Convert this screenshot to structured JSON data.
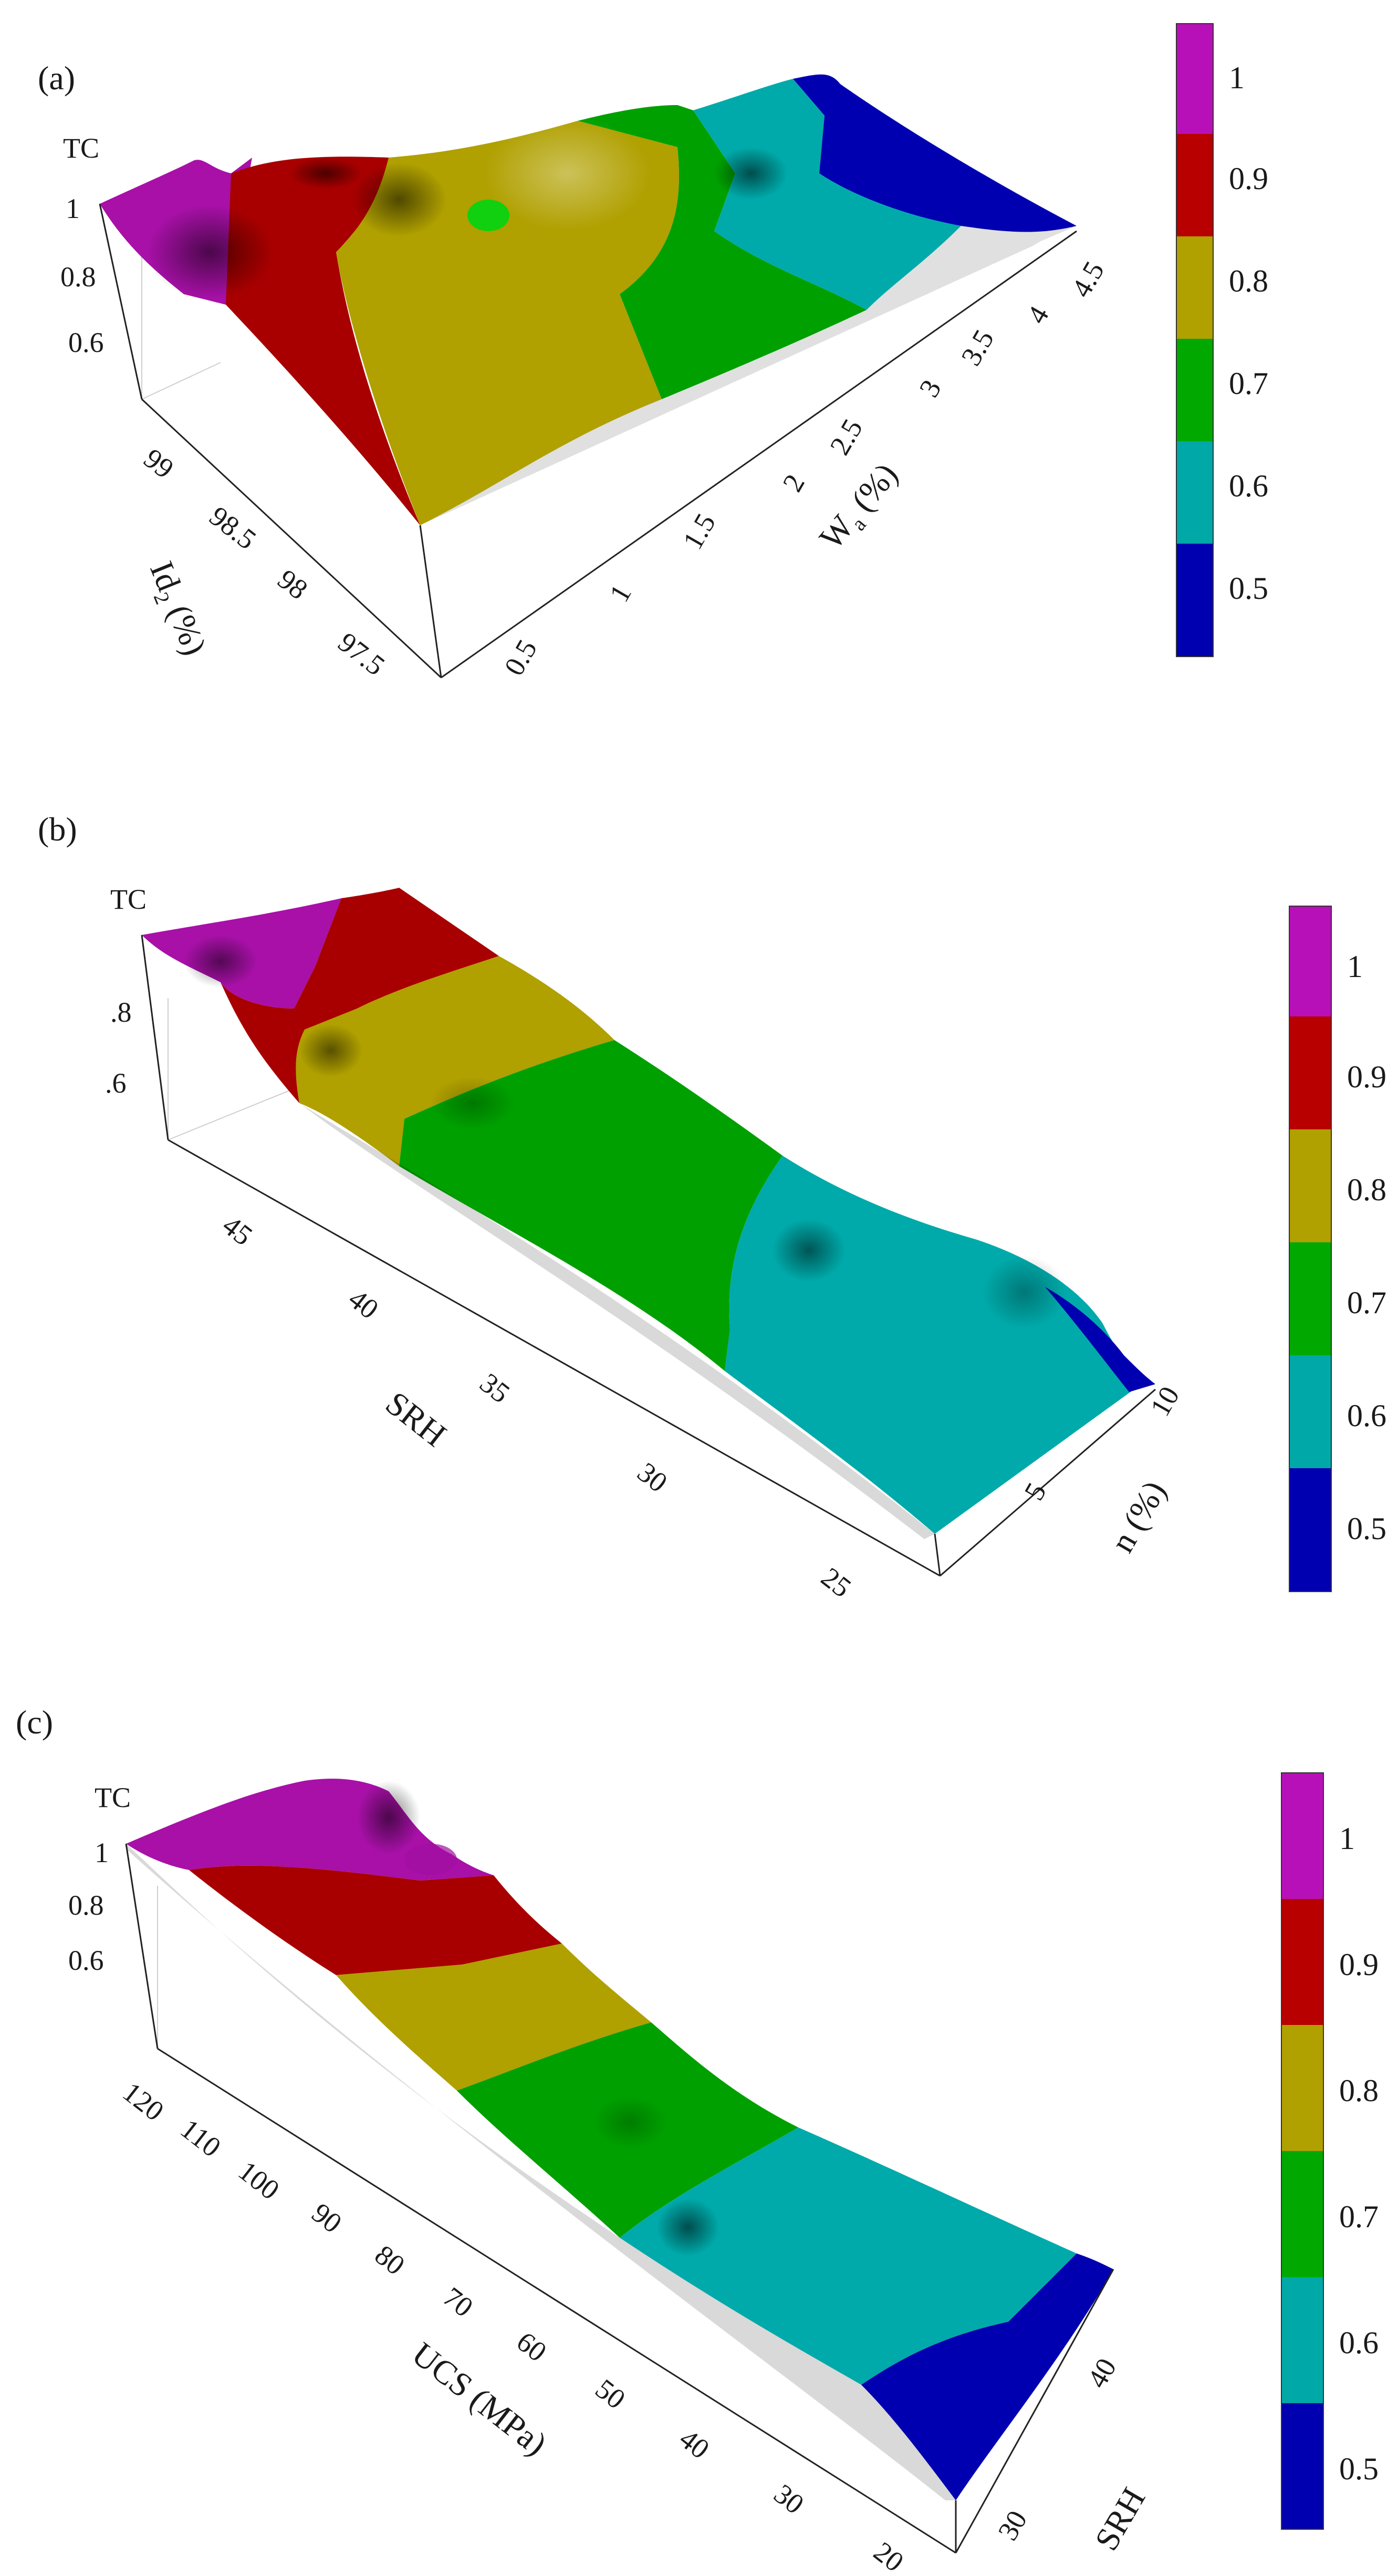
{
  "chart_data": [
    {
      "panel_label": "(a)",
      "type": "surface3d",
      "zlabel": "TC",
      "xlabel": "Id₂ (%)",
      "ylabel": "Wₐ (%)",
      "xlabel_main": "Id",
      "xlabel_sub": "2",
      "xlabel_unit": " (%)",
      "ylabel_main": "W",
      "ylabel_sub": "a",
      "ylabel_unit": " (%)",
      "x_ticks": [
        "99",
        "98.5",
        "98",
        "97.5"
      ],
      "y_ticks": [
        "0.5",
        "1",
        "1.5",
        "2",
        "2.5",
        "3",
        "3.5",
        "4",
        "4.5"
      ],
      "z_ticks": [
        "1",
        "0.8",
        "0.6"
      ],
      "xlim": [
        97.2,
        99.3
      ],
      "ylim": [
        0.2,
        4.6
      ],
      "zlim": [
        0.45,
        1.05
      ],
      "colorbar": {
        "ticks": [
          "1",
          "0.9",
          "0.8",
          "0.7",
          "0.6",
          "0.5"
        ],
        "range": [
          0.45,
          1.05
        ]
      },
      "bands": [
        {
          "range": [
            0.95,
            1.05
          ],
          "color": "#c010c0"
        },
        {
          "range": [
            0.85,
            0.95
          ],
          "color": "#c00000"
        },
        {
          "range": [
            0.75,
            0.85
          ],
          "color": "#c0b000"
        },
        {
          "range": [
            0.65,
            0.75
          ],
          "color": "#00b000"
        },
        {
          "range": [
            0.55,
            0.65
          ],
          "color": "#00b8b8"
        },
        {
          "range": [
            0.45,
            0.55
          ],
          "color": "#0000c0"
        }
      ],
      "surface_trend": "TC decreases from about 1.0 at low W_a / high Id2 to about 0.5 at W_a = 4.5"
    },
    {
      "panel_label": "(b)",
      "type": "surface3d",
      "zlabel": "TC",
      "xlabel": "SRH",
      "ylabel": "n (%)",
      "x_ticks": [
        "45",
        "40",
        "35",
        "30",
        "25"
      ],
      "y_ticks": [
        "5",
        "10"
      ],
      "z_ticks": [
        ".8",
        ".6"
      ],
      "xlim": [
        22,
        48
      ],
      "ylim": [
        1,
        11
      ],
      "zlim": [
        0.45,
        1.05
      ],
      "colorbar": {
        "ticks": [
          "1",
          "0.9",
          "0.8",
          "0.7",
          "0.6",
          "0.5"
        ],
        "range": [
          0.45,
          1.05
        ]
      },
      "surface_trend": "TC decreases from about 1.0 at SRH = 48 to about 0.55 at SRH = 25"
    },
    {
      "panel_label": "(c)",
      "type": "surface3d",
      "zlabel": "TC",
      "xlabel": "UCS (MPa)",
      "ylabel": "SRH",
      "x_ticks": [
        "120",
        "110",
        "100",
        "90",
        "80",
        "70",
        "60",
        "50",
        "40",
        "30",
        "20"
      ],
      "y_ticks": [
        "30",
        "40"
      ],
      "z_ticks": [
        "1",
        "0.8",
        "0.6"
      ],
      "xlim": [
        18,
        125
      ],
      "ylim": [
        25,
        48
      ],
      "zlim": [
        0.45,
        1.05
      ],
      "colorbar": {
        "ticks": [
          "1",
          "0.9",
          "0.8",
          "0.7",
          "0.6",
          "0.5"
        ],
        "range": [
          0.45,
          1.05
        ]
      },
      "surface_trend": "TC decreases from about 1.0 at UCS = 120 MPa to about 0.5 at UCS = 20 MPa"
    }
  ]
}
